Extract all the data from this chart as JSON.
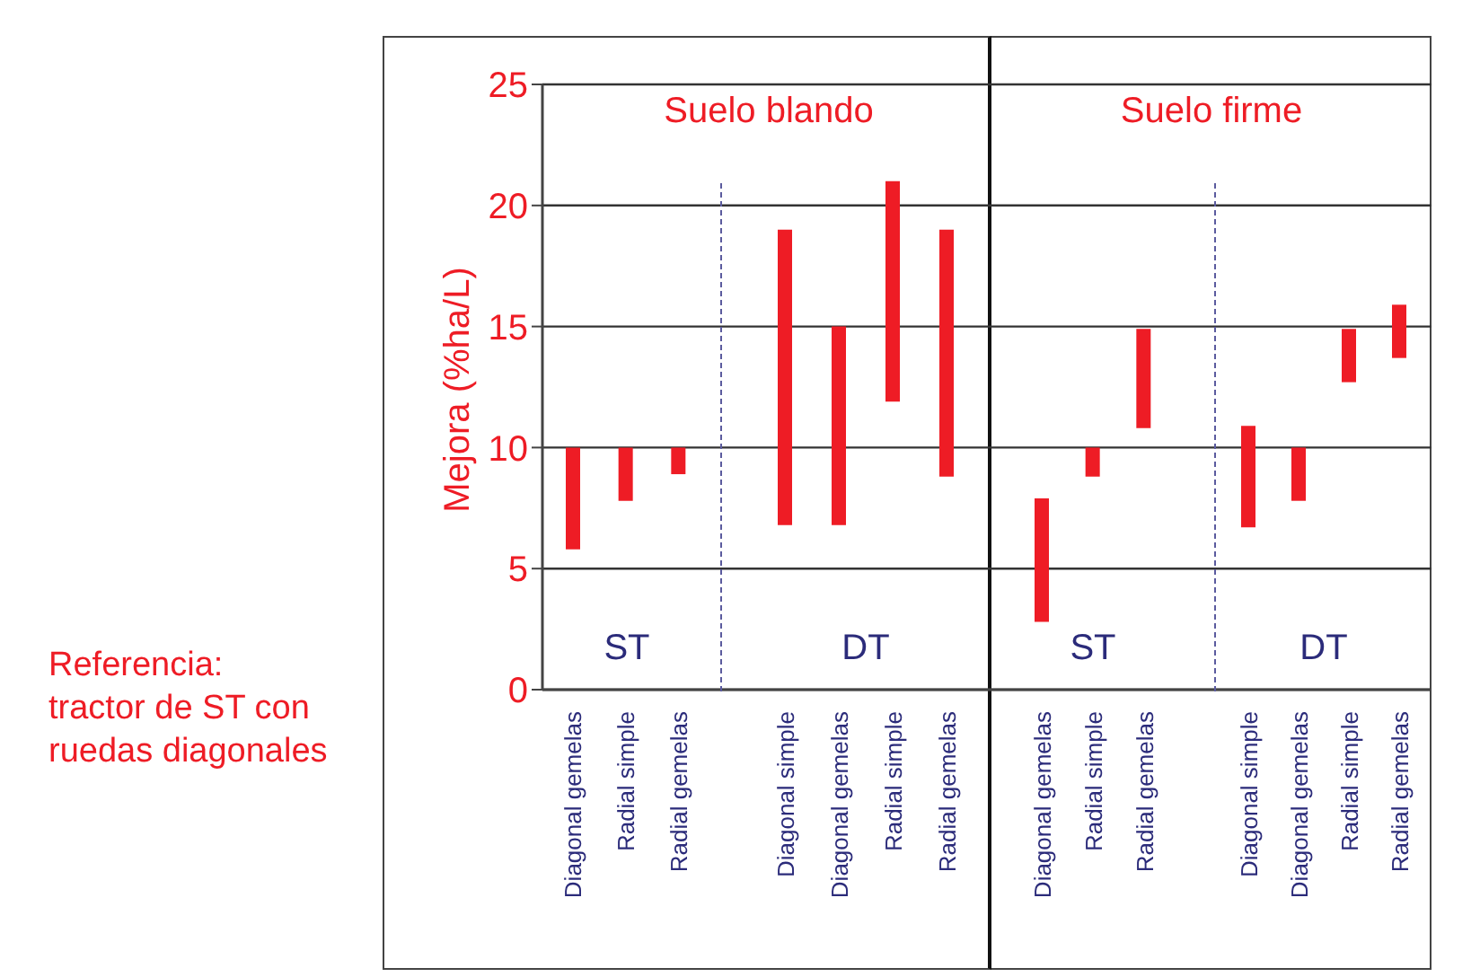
{
  "chart_data": [
    {
      "type": "bar",
      "title": "Suelo blando",
      "ylabel": "Mejora (%ha/L)",
      "categories": [
        "Diagonal gemelas",
        "Radial simple",
        "Radial gemelas"
      ],
      "base": [
        5.8,
        7.8,
        8.9
      ],
      "values": [
        4.2,
        2.2,
        1.1
      ],
      "color": "#ee1c25",
      "ylim": [
        0,
        25
      ],
      "yticks": [
        0,
        5,
        10,
        15,
        20,
        25
      ],
      "grid": "y",
      "annotations": [
        "ST",
        "Referencia:\ntractor de ST con\nruedas diagonales"
      ]
    },
    {
      "type": "bar",
      "categories": [
        "Diagonal simple",
        "Diagonal gemelas",
        "Radial simple",
        "Radial gemelas"
      ],
      "base": [
        6.8,
        6.8,
        11.9,
        8.8
      ],
      "values": [
        12.2,
        8.2,
        9.1,
        10.2
      ],
      "color": "#ee1c25",
      "ylim": [
        0,
        25
      ],
      "yticks": [
        0,
        5,
        10,
        15,
        20,
        25
      ],
      "grid": "y",
      "tick_labels": "x",
      "annotations": [
        "DT"
      ]
    },
    {
      "type": "bar",
      "title": "Suelo firme",
      "categories": [
        "Diagonal gemelas",
        "Radial simple",
        "Radial gemelas"
      ],
      "base": [
        2.8,
        8.8,
        10.8
      ],
      "values": [
        5.1,
        1.2,
        4.1
      ],
      "color": "#ee1c25",
      "ylim": [
        0,
        25
      ],
      "yticks": [
        0,
        5,
        10,
        15,
        20,
        25
      ],
      "grid": "y",
      "tick_labels": "x",
      "annotations": [
        "ST"
      ]
    },
    {
      "type": "bar",
      "categories": [
        "Diagonal simple",
        "Diagonal gemelas",
        "Radial simple",
        "Radial gemelas"
      ],
      "base": [
        6.7,
        7.8,
        12.7,
        13.7
      ],
      "values": [
        4.2,
        2.2,
        2.2,
        2.2
      ],
      "color": "#ee1c25",
      "ylim": [
        0,
        25
      ],
      "yticks": [
        0,
        5,
        10,
        15,
        20,
        25
      ],
      "grid": "y",
      "tick_labels": "x",
      "annotations": [
        "DT"
      ]
    }
  ]
}
